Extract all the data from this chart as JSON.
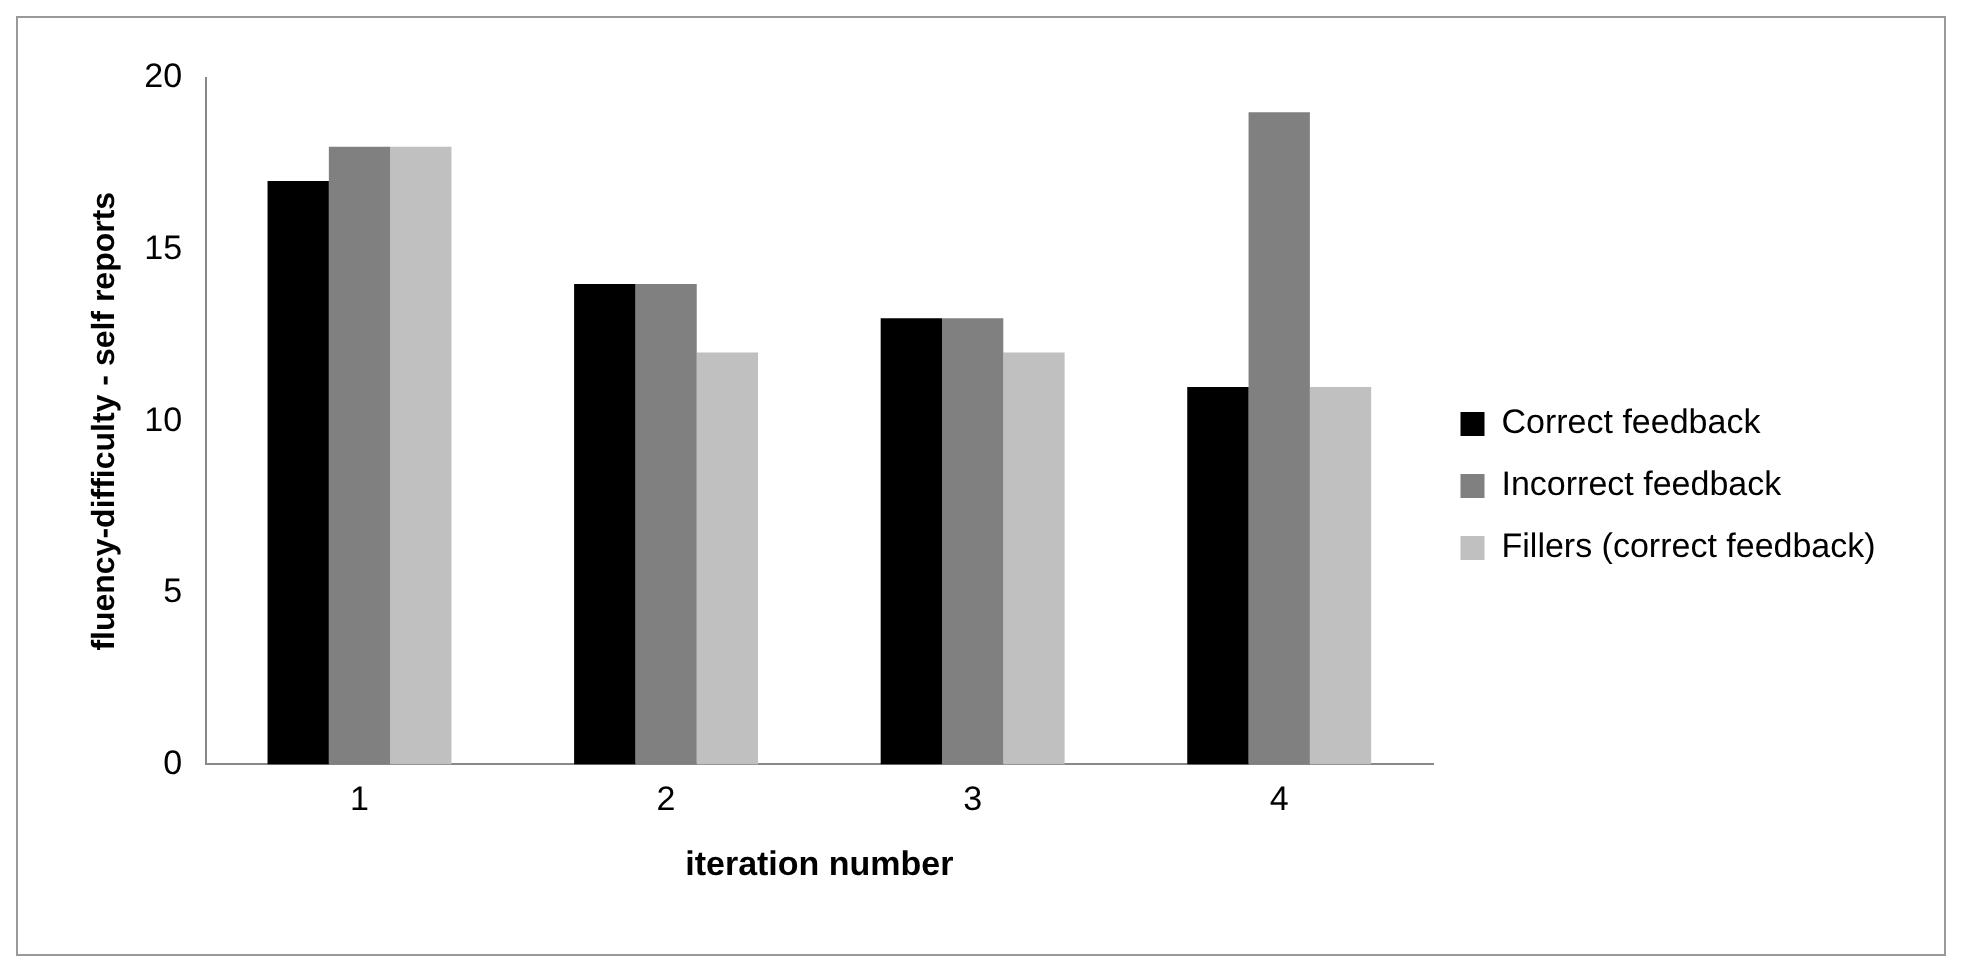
{
  "chart_data": {
    "type": "bar",
    "xlabel": "iteration number",
    "ylabel": "fluency-difficulty - self reports",
    "categories": [
      "1",
      "2",
      "3",
      "4"
    ],
    "series": [
      {
        "name": "Correct feedback",
        "color": "#000000",
        "values": [
          17,
          14,
          13,
          11
        ]
      },
      {
        "name": "Incorrect feedback",
        "color": "#808080",
        "values": [
          18,
          14,
          13,
          19
        ]
      },
      {
        "name": "Fillers (correct feedback)",
        "color": "#c0c0c0",
        "values": [
          18,
          12,
          12,
          11
        ]
      }
    ],
    "ylim": [
      0,
      20
    ],
    "yticks": [
      0,
      5,
      10,
      15,
      20
    ],
    "grid": false,
    "legend": "right"
  }
}
